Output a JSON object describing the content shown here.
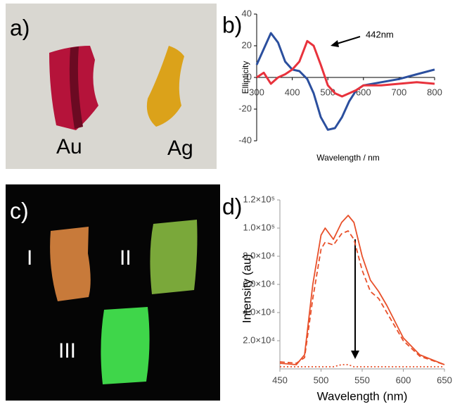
{
  "panels": {
    "a": {
      "label": "a)",
      "samples": [
        "Au",
        "Ag"
      ]
    },
    "b": {
      "label": "b)"
    },
    "c": {
      "label": "c)",
      "samples": [
        "I",
        "II",
        "III"
      ]
    },
    "d": {
      "label": "d)"
    }
  },
  "chart_data": [
    {
      "type": "line",
      "xlabel": "Wavelength / nm",
      "ylabel": "Ellipticity",
      "annotation": "442nm",
      "x": [
        300,
        320,
        340,
        360,
        380,
        400,
        420,
        442,
        460,
        480,
        500,
        520,
        540,
        560,
        580,
        600,
        650,
        700,
        750,
        800
      ],
      "series": [
        {
          "color": "#2b4f9e",
          "style": "solid",
          "values": [
            8,
            18,
            28,
            22,
            10,
            5,
            4,
            -1,
            -10,
            -25,
            -33,
            -32,
            -25,
            -15,
            -8,
            -5,
            -3,
            -1,
            2,
            5
          ]
        },
        {
          "color": "#e8323c",
          "style": "solid",
          "values": [
            0,
            3,
            -4,
            0,
            2,
            5,
            10,
            23,
            20,
            8,
            -5,
            -10,
            -12,
            -10,
            -8,
            -5,
            -5,
            -4,
            -3,
            -4
          ]
        }
      ],
      "xlim": [
        300,
        800
      ],
      "xticks": [
        300,
        400,
        500,
        600,
        700,
        800
      ],
      "ylim": [
        -40,
        40
      ],
      "yticks": [
        -40,
        -20,
        0,
        20,
        40
      ],
      "axis_at_zero": true
    },
    {
      "type": "line",
      "xlabel": "Wavelength (nm)",
      "ylabel": "Intensity (au)",
      "x": [
        450,
        470,
        480,
        490,
        500,
        505,
        515,
        525,
        533,
        540,
        550,
        560,
        570,
        580,
        600,
        620,
        650
      ],
      "series": [
        {
          "color": "#e8502a",
          "style": "solid",
          "values": [
            4000,
            3000,
            10000,
            60000,
            95000,
            100000,
            92000,
            104000,
            109000,
            104000,
            80000,
            63000,
            55000,
            45000,
            22000,
            10000,
            3000
          ]
        },
        {
          "color": "#e8502a",
          "style": "dashed",
          "values": [
            5000,
            4000,
            8000,
            50000,
            85000,
            90000,
            88000,
            96000,
            98000,
            92000,
            70000,
            55000,
            50000,
            40000,
            20000,
            9000,
            3000
          ]
        },
        {
          "color": "#e8502a",
          "style": "dotted",
          "values": [
            1500,
            1500,
            1500,
            1500,
            1500,
            1500,
            1500,
            3000,
            3000,
            1500,
            1500,
            1500,
            1500,
            1500,
            1500,
            1500,
            1500
          ]
        }
      ],
      "xlim": [
        450,
        650
      ],
      "xticks": [
        450,
        500,
        550,
        600,
        650
      ],
      "ylim": [
        0,
        120000
      ],
      "yticks": [
        {
          "value": 20000,
          "label": "2.0×10⁴"
        },
        {
          "value": 40000,
          "label": "4.0×10⁴"
        },
        {
          "value": 60000,
          "label": "6.0×10⁴"
        },
        {
          "value": 80000,
          "label": "8.0×10⁴"
        },
        {
          "value": 100000,
          "label": "1.0×10⁵"
        },
        {
          "value": 120000,
          "label": "1.2×10⁵"
        }
      ]
    }
  ]
}
